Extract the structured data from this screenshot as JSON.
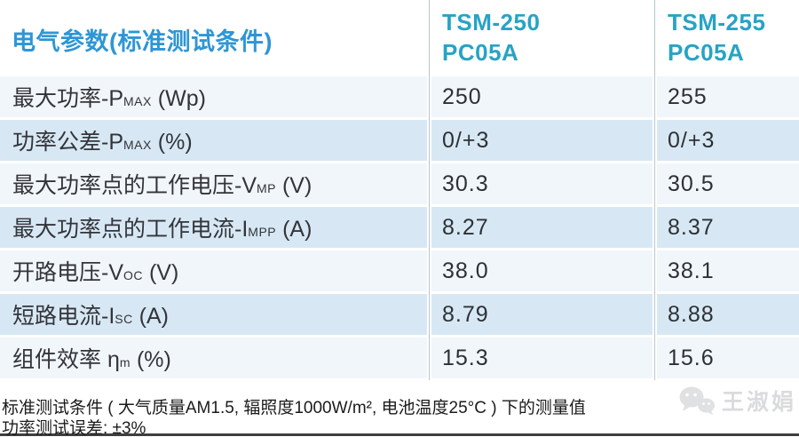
{
  "table": {
    "header": {
      "param_title": "电气参数(标准测试条件)",
      "columns": [
        {
          "line1": "TSM-250",
          "line2": "PC05A"
        },
        {
          "line1": "TSM-255",
          "line2": "PC05A"
        }
      ]
    },
    "rows": [
      {
        "label_prefix": "最大功率-P",
        "label_sub": "MAX",
        "label_suffix": " (Wp)",
        "values": [
          "250",
          "255"
        ]
      },
      {
        "label_prefix": "功率公差-P",
        "label_sub": "MAX",
        "label_suffix": " (%)",
        "values": [
          "0/+3",
          "0/+3"
        ]
      },
      {
        "label_prefix": "最大功率点的工作电压-V",
        "label_sub": "MP",
        "label_suffix": " (V)",
        "values": [
          "30.3",
          "30.5"
        ]
      },
      {
        "label_prefix": "最大功率点的工作电流-I",
        "label_sub": "MPP",
        "label_suffix": " (A)",
        "values": [
          "8.27",
          "8.37"
        ]
      },
      {
        "label_prefix": "开路电压-V",
        "label_sub": "OC",
        "label_suffix": " (V)",
        "values": [
          "38.0",
          "38.1"
        ]
      },
      {
        "label_prefix": "短路电流-I",
        "label_sub": "SC",
        "label_suffix": " (A)",
        "values": [
          "8.79",
          "8.88"
        ]
      },
      {
        "label_prefix": "组件效率 η",
        "label_sub": "m",
        "label_suffix": " (%)",
        "values": [
          "15.3",
          "15.6"
        ]
      }
    ]
  },
  "footer": {
    "line1": "标准测试条件 ( 大气质量AM1.5, 辐照度1000W/m², 电池温度25°C ) 下的测量值",
    "line2": "功率测试误差: ±3%"
  },
  "watermark": {
    "icon": "wechat-icon",
    "name": "王淑娟"
  },
  "colors": {
    "title_blue": "#2e96d5",
    "column_header_teal": "#27a3c5",
    "row_light": "#f1f6fa",
    "row_blue": "#d7e8f4",
    "divider": "#b9c6d0",
    "footer_text": "#1b1b1b",
    "watermark_gray": "#d9dbdc",
    "bottom_rule": "#3f3f3f"
  }
}
